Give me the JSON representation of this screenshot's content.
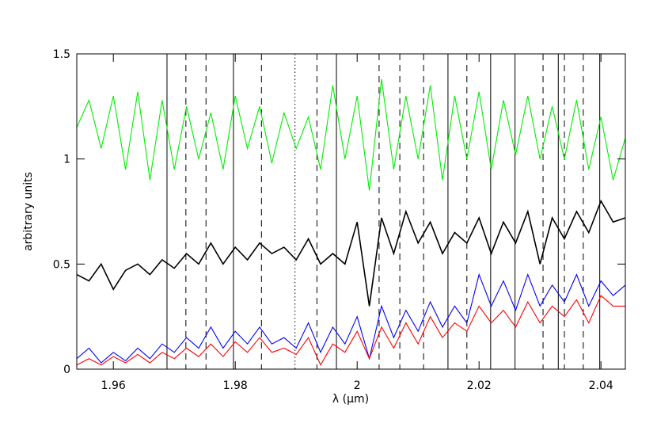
{
  "chart_data": {
    "type": "line",
    "xlabel": "λ (μm)",
    "ylabel": "arbitrary units",
    "x": [
      1.954,
      1.956,
      1.958,
      1.96,
      1.962,
      1.964,
      1.966,
      1.968,
      1.97,
      1.972,
      1.974,
      1.976,
      1.978,
      1.98,
      1.982,
      1.984,
      1.986,
      1.988,
      1.99,
      1.992,
      1.994,
      1.996,
      1.998,
      2.0,
      2.002,
      2.004,
      2.006,
      2.008,
      2.01,
      2.012,
      2.014,
      2.016,
      2.018,
      2.02,
      2.022,
      2.024,
      2.026,
      2.028,
      2.03,
      2.032,
      2.034,
      2.036,
      2.038,
      2.04,
      2.042,
      2.044
    ],
    "series": [
      {
        "color": "#00ee00",
        "values": [
          1.15,
          1.28,
          1.05,
          1.3,
          0.95,
          1.32,
          0.9,
          1.28,
          0.95,
          1.25,
          1.0,
          1.22,
          0.95,
          1.3,
          1.05,
          1.25,
          0.98,
          1.22,
          1.05,
          1.2,
          0.95,
          1.35,
          1.0,
          1.3,
          0.85,
          1.38,
          0.95,
          1.3,
          1.0,
          1.35,
          0.9,
          1.3,
          1.0,
          1.32,
          0.95,
          1.28,
          1.02,
          1.3,
          1.0,
          1.25,
          1.0,
          1.28,
          0.95,
          1.2,
          0.9,
          1.1
        ]
      },
      {
        "color": "#000000",
        "values": [
          0.45,
          0.42,
          0.5,
          0.38,
          0.47,
          0.5,
          0.45,
          0.52,
          0.48,
          0.55,
          0.5,
          0.6,
          0.5,
          0.58,
          0.52,
          0.6,
          0.55,
          0.58,
          0.52,
          0.62,
          0.5,
          0.55,
          0.5,
          0.7,
          0.3,
          0.72,
          0.55,
          0.75,
          0.6,
          0.7,
          0.55,
          0.65,
          0.6,
          0.72,
          0.55,
          0.7,
          0.6,
          0.75,
          0.5,
          0.72,
          0.62,
          0.75,
          0.65,
          0.8,
          0.7,
          0.72
        ]
      },
      {
        "color": "#0000ff",
        "values": [
          0.05,
          0.1,
          0.03,
          0.08,
          0.04,
          0.1,
          0.05,
          0.12,
          0.08,
          0.15,
          0.1,
          0.2,
          0.1,
          0.18,
          0.12,
          0.2,
          0.12,
          0.15,
          0.1,
          0.22,
          0.08,
          0.2,
          0.12,
          0.25,
          0.05,
          0.3,
          0.15,
          0.28,
          0.18,
          0.32,
          0.2,
          0.3,
          0.22,
          0.45,
          0.3,
          0.42,
          0.28,
          0.45,
          0.3,
          0.4,
          0.32,
          0.45,
          0.3,
          0.42,
          0.35,
          0.4
        ]
      },
      {
        "color": "#ff0000",
        "values": [
          0.02,
          0.05,
          0.02,
          0.06,
          0.03,
          0.07,
          0.03,
          0.08,
          0.05,
          0.1,
          0.06,
          0.12,
          0.06,
          0.13,
          0.08,
          0.15,
          0.08,
          0.1,
          0.07,
          0.15,
          0.02,
          0.12,
          0.08,
          0.18,
          0.05,
          0.2,
          0.1,
          0.22,
          0.12,
          0.25,
          0.15,
          0.22,
          0.18,
          0.3,
          0.22,
          0.28,
          0.2,
          0.32,
          0.22,
          0.3,
          0.25,
          0.33,
          0.22,
          0.35,
          0.3,
          0.3
        ]
      }
    ],
    "vlines": {
      "x": [
        1.9688,
        1.9719,
        1.9752,
        1.9797,
        1.9843,
        1.9898,
        1.9934,
        1.9966,
        2.0036,
        2.007,
        2.0109,
        2.0149,
        2.018,
        2.0219,
        2.0259,
        2.0305,
        2.033,
        2.034,
        2.0371,
        2.0398
      ],
      "styles": [
        "solid",
        "dashed",
        "dashed",
        "solid",
        "dashed",
        "dotted",
        "dashed",
        "solid",
        "dashed",
        "dashed",
        "dashed",
        "solid",
        "dashed",
        "solid",
        "solid",
        "dashed",
        "solid",
        "dashed",
        "dashed",
        "solid"
      ]
    },
    "xlim": [
      1.954,
      2.044
    ],
    "ylim": [
      0,
      1.5
    ],
    "xticks": [
      1.96,
      1.98,
      2,
      2.02,
      2.04
    ],
    "yticks": [
      0,
      0.5,
      1,
      1.5
    ]
  }
}
